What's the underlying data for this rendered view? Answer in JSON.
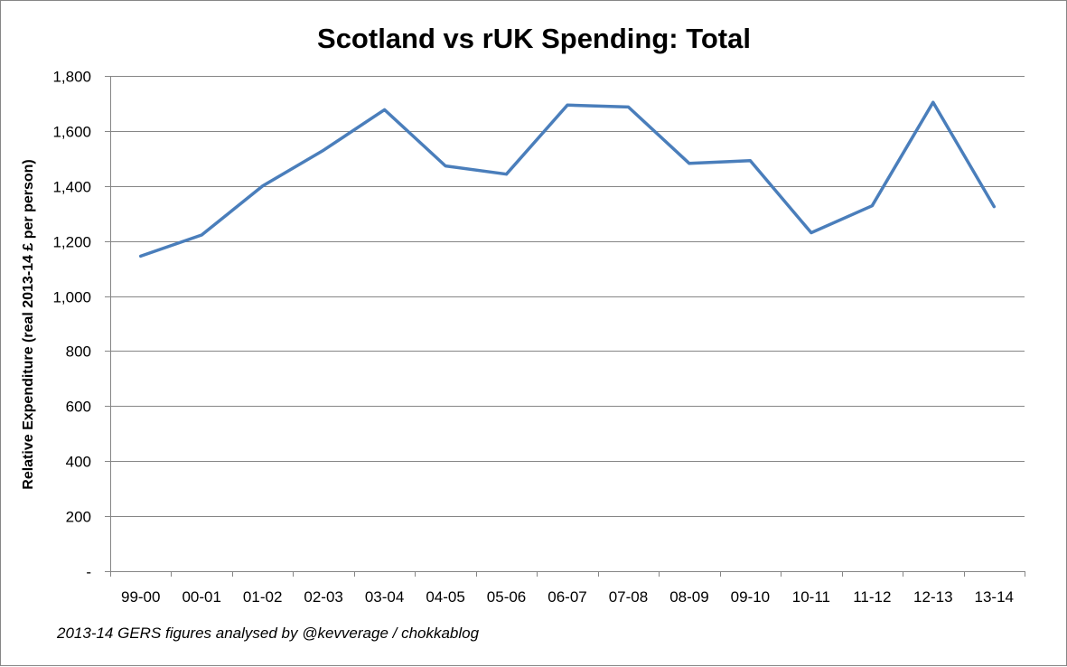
{
  "chart_data": {
    "type": "line",
    "title": "Scotland vs rUK Spending: Total",
    "xlabel": "",
    "ylabel": "Relative Expenditure (real 2013-14 £ per person)",
    "categories": [
      "99-00",
      "00-01",
      "01-02",
      "02-03",
      "03-04",
      "04-05",
      "05-06",
      "06-07",
      "07-08",
      "08-09",
      "09-10",
      "10-11",
      "11-12",
      "12-13",
      "13-14"
    ],
    "series": [
      {
        "values": [
          1145,
          1222,
          1400,
          1530,
          1677,
          1473,
          1443,
          1694,
          1687,
          1482,
          1492,
          1230,
          1328,
          1704,
          1325
        ]
      }
    ],
    "ylim": [
      0,
      1800
    ],
    "yticks": [
      0,
      200,
      400,
      600,
      800,
      1000,
      1200,
      1400,
      1600,
      1800
    ],
    "ytick_labels": [
      "-",
      "200",
      "400",
      "600",
      "800",
      "1,000",
      "1,200",
      "1,400",
      "1,600",
      "1,800"
    ],
    "grid": true,
    "legend": "none",
    "line_color": "#4a7ebb",
    "annotation": "2013-14 GERS figures analysed by @kevverage / chokkablog"
  }
}
